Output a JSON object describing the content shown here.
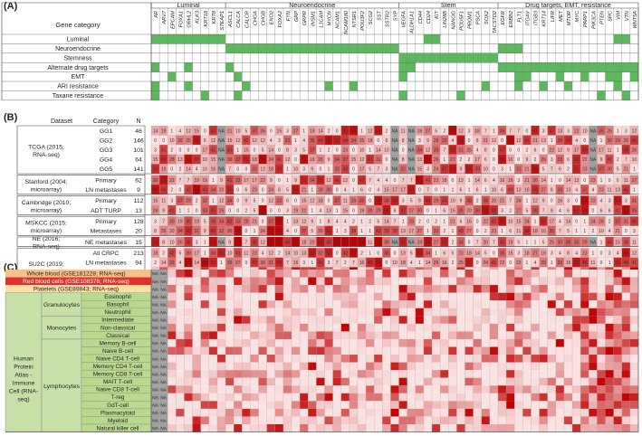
{
  "panels": {
    "a": "(A)",
    "b": "(B)",
    "c": "(C)"
  },
  "panel_a": {
    "header_label": "Gene category",
    "groups": [
      "Luminal",
      "Neuroendocrine",
      "Stem",
      "Drug targets, EMT, resistance"
    ],
    "genes": [
      "AR",
      "ARV7",
      "EPCAM",
      "FOXA1",
      "GRHL2",
      "KLK3",
      "KRT18",
      "KRT8",
      "STEAP1",
      "ASCL1",
      "CALCA",
      "CALCR",
      "CHGA",
      "CHGB",
      "ENO2",
      "FOXA2",
      "FYN",
      "GRP",
      "GRPR",
      "INSM1",
      "L1CAM",
      "MYCN",
      "NCAM1",
      "NCAM180",
      "NTSR1",
      "POU3F2",
      "SCG2",
      "SST",
      "SSTR2",
      "SYP",
      "VEGFA",
      "ALDH1A1",
      "CD44",
      "CD24",
      "KIT",
      "LIN28B",
      "NANOG",
      "POU5F1",
      "PROM1",
      "PSCA",
      "SOX2",
      "TACSTD2",
      "EGFR",
      "ERBB2",
      "FLT1",
      "ITGAV",
      "ITGB3",
      "KRT14",
      "LIFR",
      "MET",
      "MTOR",
      "MYC",
      "PARP1",
      "PIK3CA",
      "PTEN",
      "SRC",
      "VIM",
      "VTN",
      "WNT5A"
    ],
    "rows": [
      "Luminal",
      "Neuroendocrine",
      "Stemness",
      "Alternate drug targets",
      "EMT",
      "ARI resistance",
      "Taxane resistance"
    ]
  },
  "panel_b": {
    "col_headers": [
      "Dataset",
      "Category",
      "N"
    ],
    "datasets": [
      {
        "name": "TCGA (2015; RNA-seq)",
        "rows": [
          {
            "cat": "GG1",
            "n": "46"
          },
          {
            "cat": "GG2",
            "n": "146"
          },
          {
            "cat": "GG3",
            "n": "101"
          },
          {
            "cat": "GG4",
            "n": "64"
          },
          {
            "cat": "GG5",
            "n": "141"
          }
        ]
      },
      {
        "name": "Stanford (2004; microarray)",
        "rows": [
          {
            "cat": "Primary",
            "n": "62"
          },
          {
            "cat": "LN metastases",
            "n": "9"
          }
        ]
      },
      {
        "name": "Cambridge (2010; microarray)",
        "rows": [
          {
            "cat": "Primary",
            "n": "112"
          },
          {
            "cat": "ADT TURP",
            "n": "13"
          }
        ]
      },
      {
        "name": "MSKCC (2015; microarray)",
        "rows": [
          {
            "cat": "Primary",
            "n": "128"
          },
          {
            "cat": "Metastases",
            "n": "20"
          }
        ]
      },
      {
        "name": "NE (2016; RNA-seq)",
        "rows": [
          {
            "cat": "NE metastases",
            "n": "15"
          }
        ]
      },
      {
        "name": "SU2C (2019; RNA-seq)",
        "rows": [
          {
            "cat": "All CRPC",
            "n": "213"
          },
          {
            "cat": "LN metastases",
            "n": "94"
          },
          {
            "cat": "Bone metastases",
            "n": "60"
          },
          {
            "cat": "Liver metastases",
            "n": "34"
          }
        ]
      }
    ]
  },
  "panel_c": {
    "blood_rows": [
      "Whole blood (GSE181228; RNA-seq)",
      "Red blood cells (GSE108378; RNA-seq)",
      "Platelets (GSE89843; RNA-seq)"
    ],
    "atlas_label": [
      "Human",
      "Protein",
      "Atlas -",
      "Immune",
      "Cell (RNA-",
      "seq)"
    ],
    "lineages": [
      {
        "name": "Granulocytes",
        "cells": [
          "Eosinophil",
          "Basophil",
          "Neutrophil"
        ]
      },
      {
        "name": "Monocytes",
        "cells": [
          "Intermediate",
          "Non-classical",
          "Classical"
        ]
      },
      {
        "name": "Lymphocytes",
        "cells": [
          "Memory B-cell",
          "Naive B-cell",
          "Naive CD4 T-cell",
          "Memory CD4 T-cell",
          "Memory CD8 T-cell",
          "MAIT T-cell",
          "Naive CD8 T-cell",
          "T-reg",
          "GdT-cell",
          "Plasmacytoid",
          "Myeloid",
          "Natural killer cell"
        ]
      }
    ],
    "na_text": "NA"
  },
  "colors": {
    "green": "#5cb85c",
    "heat_high": "#c00000",
    "heat_low": "#fbe3e3",
    "na_grey": "#9e9e9e",
    "whole_blood": "#f7c28a",
    "rbc": "#e0322c",
    "platelets": "#fbe0a6",
    "atlas_green": "#c6e0a8",
    "lineage_green": "#b9d98f"
  }
}
